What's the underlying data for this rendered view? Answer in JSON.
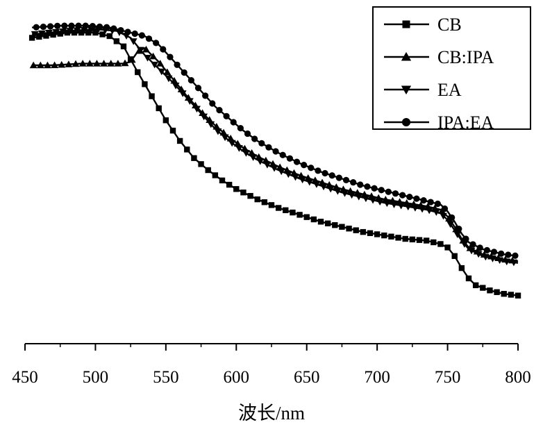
{
  "chart_data": {
    "type": "line",
    "title": "",
    "xlabel": "波长/nm",
    "ylabel": "",
    "xlim": [
      450,
      800
    ],
    "xticks": [
      450,
      500,
      550,
      600,
      650,
      700,
      750,
      800
    ],
    "y_axis_shown": false,
    "legend_position": "top-right",
    "series": [
      {
        "name": "CB",
        "marker": "square",
        "color": "#000000",
        "points": [
          [
            455,
            0.89
          ],
          [
            480,
            0.905
          ],
          [
            500,
            0.905
          ],
          [
            510,
            0.895
          ],
          [
            520,
            0.865
          ],
          [
            530,
            0.79
          ],
          [
            540,
            0.72
          ],
          [
            550,
            0.65
          ],
          [
            560,
            0.59
          ],
          [
            570,
            0.54
          ],
          [
            580,
            0.505
          ],
          [
            590,
            0.475
          ],
          [
            600,
            0.45
          ],
          [
            615,
            0.42
          ],
          [
            630,
            0.395
          ],
          [
            645,
            0.375
          ],
          [
            660,
            0.355
          ],
          [
            675,
            0.34
          ],
          [
            690,
            0.325
          ],
          [
            705,
            0.315
          ],
          [
            720,
            0.305
          ],
          [
            735,
            0.3
          ],
          [
            745,
            0.29
          ],
          [
            750,
            0.28
          ],
          [
            755,
            0.255
          ],
          [
            760,
            0.22
          ],
          [
            765,
            0.19
          ],
          [
            770,
            0.17
          ],
          [
            780,
            0.155
          ],
          [
            790,
            0.145
          ],
          [
            800,
            0.14
          ]
        ]
      },
      {
        "name": "CB:IPA",
        "marker": "triangle-up",
        "color": "#000000",
        "points": [
          [
            455,
            0.81
          ],
          [
            470,
            0.81
          ],
          [
            490,
            0.815
          ],
          [
            510,
            0.815
          ],
          [
            520,
            0.815
          ],
          [
            525,
            0.82
          ],
          [
            530,
            0.85
          ],
          [
            535,
            0.86
          ],
          [
            545,
            0.82
          ],
          [
            555,
            0.77
          ],
          [
            565,
            0.72
          ],
          [
            575,
            0.675
          ],
          [
            585,
            0.635
          ],
          [
            595,
            0.6
          ],
          [
            605,
            0.57
          ],
          [
            615,
            0.545
          ],
          [
            630,
            0.515
          ],
          [
            645,
            0.49
          ],
          [
            660,
            0.47
          ],
          [
            675,
            0.45
          ],
          [
            690,
            0.435
          ],
          [
            705,
            0.42
          ],
          [
            720,
            0.41
          ],
          [
            735,
            0.4
          ],
          [
            745,
            0.39
          ],
          [
            750,
            0.37
          ],
          [
            755,
            0.34
          ],
          [
            760,
            0.305
          ],
          [
            765,
            0.28
          ],
          [
            775,
            0.26
          ],
          [
            790,
            0.245
          ],
          [
            800,
            0.24
          ]
        ]
      },
      {
        "name": "EA",
        "marker": "triangle-down",
        "color": "#000000",
        "points": [
          [
            455,
            0.9
          ],
          [
            480,
            0.91
          ],
          [
            500,
            0.915
          ],
          [
            515,
            0.91
          ],
          [
            525,
            0.89
          ],
          [
            535,
            0.84
          ],
          [
            545,
            0.8
          ],
          [
            555,
            0.76
          ],
          [
            565,
            0.715
          ],
          [
            575,
            0.67
          ],
          [
            585,
            0.625
          ],
          [
            595,
            0.59
          ],
          [
            605,
            0.56
          ],
          [
            615,
            0.535
          ],
          [
            630,
            0.505
          ],
          [
            645,
            0.48
          ],
          [
            660,
            0.46
          ],
          [
            675,
            0.44
          ],
          [
            690,
            0.425
          ],
          [
            705,
            0.41
          ],
          [
            720,
            0.4
          ],
          [
            735,
            0.39
          ],
          [
            745,
            0.38
          ],
          [
            750,
            0.36
          ],
          [
            755,
            0.33
          ],
          [
            760,
            0.3
          ],
          [
            765,
            0.275
          ],
          [
            775,
            0.255
          ],
          [
            790,
            0.24
          ],
          [
            800,
            0.235
          ]
        ]
      },
      {
        "name": "IPA:EA",
        "marker": "circle",
        "color": "#000000",
        "points": [
          [
            455,
            0.92
          ],
          [
            475,
            0.925
          ],
          [
            495,
            0.925
          ],
          [
            510,
            0.92
          ],
          [
            525,
            0.905
          ],
          [
            535,
            0.895
          ],
          [
            545,
            0.87
          ],
          [
            555,
            0.825
          ],
          [
            565,
            0.78
          ],
          [
            575,
            0.735
          ],
          [
            585,
            0.69
          ],
          [
            595,
            0.655
          ],
          [
            605,
            0.62
          ],
          [
            615,
            0.59
          ],
          [
            630,
            0.555
          ],
          [
            645,
            0.525
          ],
          [
            660,
            0.5
          ],
          [
            675,
            0.48
          ],
          [
            690,
            0.46
          ],
          [
            705,
            0.445
          ],
          [
            720,
            0.43
          ],
          [
            735,
            0.415
          ],
          [
            745,
            0.405
          ],
          [
            750,
            0.385
          ],
          [
            755,
            0.355
          ],
          [
            760,
            0.32
          ],
          [
            765,
            0.295
          ],
          [
            775,
            0.275
          ],
          [
            790,
            0.26
          ],
          [
            800,
            0.255
          ]
        ]
      }
    ]
  }
}
